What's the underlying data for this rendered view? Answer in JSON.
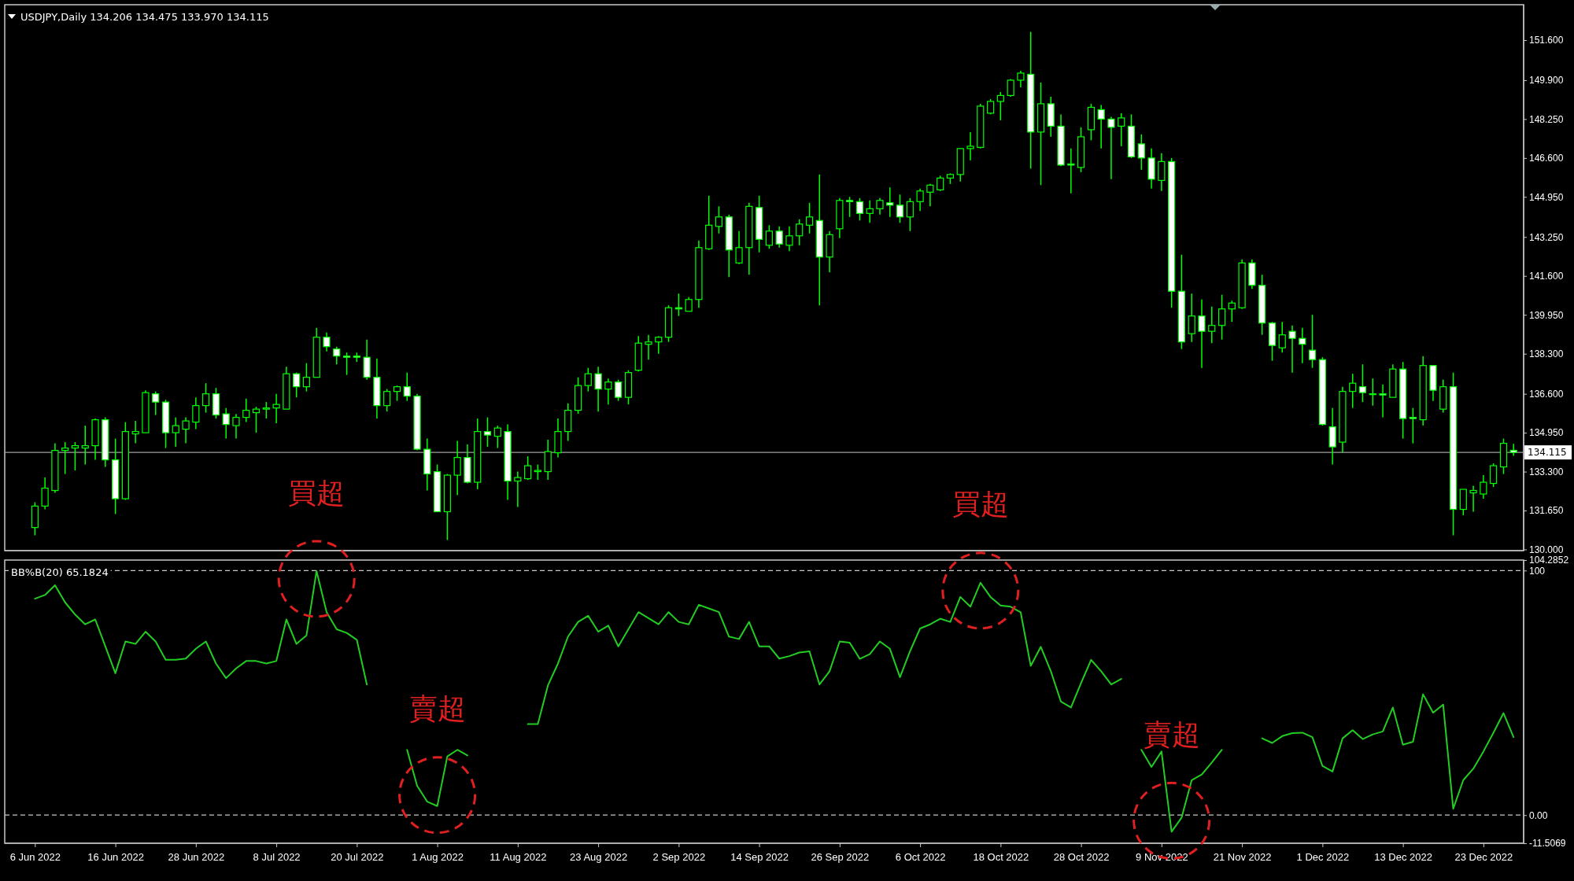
{
  "chart_data": [
    {
      "type": "candlestick",
      "title": "USDJPY,Daily  134.206 134.475 133.970 134.115",
      "color": "#00ff00",
      "tick_labels": "y",
      "categories": [
        null,
        null,
        null,
        null,
        null,
        null,
        null,
        null,
        null,
        null,
        null,
        null,
        null,
        null,
        null,
        null,
        null,
        null,
        null,
        null,
        null,
        null,
        null,
        null,
        null,
        null,
        null,
        null,
        null,
        null,
        null,
        null,
        null,
        null,
        null,
        null,
        null,
        null,
        null,
        null,
        null,
        null,
        null,
        null,
        null,
        null,
        null,
        null,
        null,
        null,
        null,
        null,
        null,
        null,
        null,
        null,
        null,
        null,
        null,
        null,
        null,
        null,
        null,
        null,
        null,
        null,
        null,
        null,
        null,
        null,
        null,
        null,
        null,
        null,
        null,
        null,
        null,
        null,
        null,
        null,
        null,
        null,
        null,
        null,
        null,
        null,
        null,
        null,
        null,
        null,
        null,
        null,
        null,
        null,
        null,
        null,
        null,
        null,
        null,
        null,
        null,
        null,
        null,
        null,
        null,
        null,
        null,
        null,
        null,
        null,
        null,
        null,
        null,
        null,
        null,
        null,
        null,
        null,
        null,
        null,
        null,
        null,
        null,
        null,
        null,
        null,
        null,
        null,
        null,
        null,
        null,
        null,
        null,
        null,
        null,
        null,
        null,
        null,
        null,
        null,
        null,
        null,
        null,
        null,
        null,
        null,
        null,
        null
      ],
      "ohlc": [
        [
          130.93,
          132.0,
          130.6,
          131.84
        ],
        [
          131.84,
          133.05,
          131.7,
          132.6
        ],
        [
          132.5,
          134.5,
          132.4,
          134.2
        ],
        [
          134.2,
          134.55,
          133.2,
          134.3
        ],
        [
          134.3,
          134.55,
          133.35,
          134.4
        ],
        [
          134.3,
          135.25,
          133.6,
          134.4
        ],
        [
          134.4,
          135.55,
          133.8,
          135.5
        ],
        [
          135.5,
          135.6,
          133.5,
          133.8
        ],
        [
          133.8,
          134.7,
          131.5,
          132.15
        ],
        [
          132.15,
          135.4,
          132.1,
          135.0
        ],
        [
          134.9,
          135.45,
          134.5,
          135.0
        ],
        [
          134.95,
          136.75,
          134.95,
          136.65
        ],
        [
          136.6,
          136.7,
          135.7,
          136.25
        ],
        [
          136.25,
          136.35,
          134.3,
          134.95
        ],
        [
          134.95,
          135.6,
          134.35,
          135.25
        ],
        [
          135.1,
          135.6,
          134.5,
          135.45
        ],
        [
          135.4,
          136.45,
          135.1,
          136.1
        ],
        [
          136.1,
          137.05,
          135.8,
          136.6
        ],
        [
          136.6,
          136.85,
          135.55,
          135.7
        ],
        [
          135.75,
          136.0,
          134.7,
          135.3
        ],
        [
          135.25,
          135.75,
          134.7,
          135.6
        ],
        [
          135.6,
          136.4,
          135.4,
          135.9
        ],
        [
          135.8,
          136.05,
          134.95,
          135.95
        ],
        [
          135.95,
          136.25,
          135.55,
          136.0
        ],
        [
          136.0,
          136.6,
          135.35,
          136.15
        ],
        [
          135.95,
          137.75,
          135.95,
          137.45
        ],
        [
          137.45,
          137.5,
          136.45,
          136.9
        ],
        [
          136.9,
          137.9,
          136.7,
          137.3
        ],
        [
          137.3,
          139.4,
          137.3,
          139.0
        ],
        [
          139.0,
          139.2,
          138.4,
          138.6
        ],
        [
          138.5,
          138.6,
          137.85,
          138.2
        ],
        [
          138.2,
          138.35,
          137.4,
          138.15
        ],
        [
          138.2,
          138.35,
          137.95,
          138.15
        ],
        [
          138.15,
          138.9,
          137.2,
          137.3
        ],
        [
          137.3,
          138.1,
          135.55,
          136.1
        ],
        [
          136.1,
          136.8,
          135.85,
          136.7
        ],
        [
          136.7,
          136.95,
          136.3,
          136.9
        ],
        [
          136.9,
          137.5,
          136.3,
          136.5
        ],
        [
          136.5,
          136.6,
          134.2,
          134.25
        ],
        [
          134.25,
          134.7,
          132.5,
          133.2
        ],
        [
          133.3,
          133.6,
          131.6,
          131.6
        ],
        [
          131.6,
          133.2,
          130.4,
          133.15
        ],
        [
          133.15,
          134.6,
          132.3,
          133.9
        ],
        [
          133.9,
          134.45,
          132.8,
          132.85
        ],
        [
          132.85,
          135.55,
          132.55,
          135.0
        ],
        [
          135.0,
          135.6,
          134.35,
          134.85
        ],
        [
          134.8,
          135.25,
          134.3,
          135.15
        ],
        [
          135.0,
          135.3,
          132.1,
          132.9
        ],
        [
          132.9,
          133.3,
          131.8,
          133.05
        ],
        [
          133.0,
          133.95,
          132.95,
          133.55
        ],
        [
          133.3,
          133.6,
          132.95,
          133.35
        ],
        [
          133.3,
          134.65,
          132.95,
          134.15
        ],
        [
          134.1,
          135.55,
          133.9,
          135.0
        ],
        [
          135.0,
          136.2,
          134.6,
          135.9
        ],
        [
          135.9,
          137.3,
          135.75,
          136.95
        ],
        [
          136.95,
          137.7,
          136.7,
          137.45
        ],
        [
          137.45,
          137.75,
          135.85,
          136.8
        ],
        [
          136.8,
          137.25,
          136.15,
          137.1
        ],
        [
          137.1,
          137.2,
          136.3,
          136.45
        ],
        [
          136.45,
          137.6,
          136.15,
          137.5
        ],
        [
          137.6,
          139.05,
          137.55,
          138.75
        ],
        [
          138.7,
          139.1,
          138.05,
          138.8
        ],
        [
          138.8,
          139.05,
          138.3,
          139.0
        ],
        [
          139.0,
          140.35,
          138.8,
          140.25
        ],
        [
          140.25,
          140.85,
          139.9,
          140.2
        ],
        [
          140.1,
          140.7,
          140.1,
          140.6
        ],
        [
          140.6,
          143.1,
          140.25,
          142.8
        ],
        [
          142.75,
          145.0,
          142.7,
          143.75
        ],
        [
          143.7,
          144.55,
          143.4,
          144.1
        ],
        [
          144.1,
          144.2,
          141.55,
          142.7
        ],
        [
          142.15,
          143.5,
          142.1,
          142.8
        ],
        [
          142.8,
          144.7,
          141.65,
          144.55
        ],
        [
          144.5,
          145.0,
          142.6,
          143.15
        ],
        [
          142.9,
          143.75,
          142.75,
          143.5
        ],
        [
          143.5,
          143.7,
          142.8,
          142.95
        ],
        [
          142.9,
          143.7,
          142.65,
          143.3
        ],
        [
          143.3,
          144.0,
          142.9,
          143.8
        ],
        [
          143.75,
          144.7,
          143.4,
          144.1
        ],
        [
          143.95,
          145.9,
          140.35,
          142.4
        ],
        [
          142.4,
          143.5,
          141.75,
          143.35
        ],
        [
          143.6,
          144.9,
          143.2,
          144.8
        ],
        [
          144.8,
          144.95,
          144.1,
          144.75
        ],
        [
          144.75,
          144.9,
          143.95,
          144.25
        ],
        [
          144.25,
          144.8,
          143.85,
          144.45
        ],
        [
          144.45,
          144.9,
          144.2,
          144.8
        ],
        [
          144.7,
          145.35,
          144.1,
          144.6
        ],
        [
          144.6,
          145.05,
          143.85,
          144.1
        ],
        [
          144.1,
          144.9,
          143.5,
          144.75
        ],
        [
          144.75,
          145.3,
          144.35,
          145.2
        ],
        [
          145.15,
          145.5,
          144.55,
          145.45
        ],
        [
          145.25,
          145.85,
          145.2,
          145.75
        ],
        [
          145.75,
          145.95,
          145.5,
          145.9
        ],
        [
          145.9,
          147.0,
          145.6,
          147.0
        ],
        [
          147.0,
          147.7,
          146.5,
          147.1
        ],
        [
          147.05,
          148.9,
          147.0,
          148.8
        ],
        [
          148.5,
          149.1,
          148.45,
          149.0
        ],
        [
          149.0,
          149.4,
          148.2,
          149.25
        ],
        [
          149.25,
          149.95,
          149.2,
          149.9
        ],
        [
          149.9,
          150.3,
          149.6,
          150.2
        ],
        [
          150.15,
          151.95,
          146.15,
          147.7
        ],
        [
          147.7,
          149.8,
          145.45,
          148.9
        ],
        [
          148.9,
          149.2,
          147.5,
          147.95
        ],
        [
          147.95,
          148.45,
          146.25,
          146.3
        ],
        [
          146.35,
          147.0,
          145.1,
          146.3
        ],
        [
          146.2,
          147.9,
          146.0,
          147.5
        ],
        [
          147.8,
          148.9,
          147.35,
          148.75
        ],
        [
          148.65,
          148.85,
          147.0,
          148.25
        ],
        [
          148.25,
          148.35,
          145.7,
          147.9
        ],
        [
          147.95,
          148.5,
          147.1,
          148.3
        ],
        [
          147.95,
          148.45,
          146.6,
          146.65
        ],
        [
          147.2,
          147.6,
          146.1,
          146.6
        ],
        [
          146.6,
          147.0,
          145.3,
          145.7
        ],
        [
          145.65,
          146.8,
          145.2,
          146.45
        ],
        [
          146.45,
          146.6,
          140.25,
          140.95
        ],
        [
          140.95,
          142.5,
          138.5,
          138.8
        ],
        [
          139.15,
          140.85,
          138.8,
          139.9
        ],
        [
          139.9,
          140.6,
          137.7,
          139.25
        ],
        [
          139.25,
          140.3,
          138.75,
          139.5
        ],
        [
          139.5,
          140.8,
          138.9,
          140.2
        ],
        [
          140.2,
          140.55,
          139.65,
          140.45
        ],
        [
          140.25,
          142.3,
          140.2,
          142.15
        ],
        [
          142.15,
          142.3,
          141.05,
          141.2
        ],
        [
          141.2,
          141.65,
          139.1,
          139.6
        ],
        [
          139.6,
          139.65,
          138.0,
          138.65
        ],
        [
          138.55,
          139.65,
          138.35,
          139.1
        ],
        [
          139.25,
          139.5,
          137.5,
          138.95
        ],
        [
          138.95,
          139.4,
          137.9,
          138.7
        ],
        [
          138.45,
          139.95,
          137.7,
          138.05
        ],
        [
          138.05,
          138.15,
          135.25,
          135.3
        ],
        [
          135.2,
          136.0,
          133.6,
          134.35
        ],
        [
          134.55,
          136.9,
          134.1,
          136.7
        ],
        [
          136.7,
          137.45,
          136.0,
          137.05
        ],
        [
          136.9,
          137.85,
          136.25,
          136.65
        ],
        [
          136.6,
          137.25,
          136.1,
          136.6
        ],
        [
          136.6,
          137.0,
          135.6,
          136.55
        ],
        [
          136.45,
          137.85,
          136.45,
          137.65
        ],
        [
          137.65,
          137.95,
          134.7,
          135.55
        ],
        [
          135.6,
          136.0,
          134.5,
          135.55
        ],
        [
          135.5,
          138.2,
          135.25,
          137.8
        ],
        [
          137.8,
          137.8,
          136.3,
          136.75
        ],
        [
          135.95,
          137.2,
          135.8,
          136.9
        ],
        [
          136.9,
          137.5,
          130.6,
          131.7
        ],
        [
          131.7,
          132.55,
          131.45,
          132.55
        ],
        [
          132.4,
          132.7,
          131.6,
          132.5
        ],
        [
          132.35,
          133.15,
          132.15,
          132.85
        ],
        [
          132.8,
          133.65,
          132.65,
          133.55
        ],
        [
          133.5,
          134.7,
          133.2,
          134.5
        ],
        [
          134.206,
          134.475,
          133.97,
          134.115
        ]
      ],
      "ylim": [
        129.95,
        153.1
      ],
      "yticks": [
        {
          "value": 130.0,
          "label": "130.000"
        },
        {
          "value": 131.65,
          "label": "131.650"
        },
        {
          "value": 133.3,
          "label": "133.300"
        },
        {
          "value": 134.95,
          "label": "134.950"
        },
        {
          "value": 136.6,
          "label": "136.600"
        },
        {
          "value": 138.3,
          "label": "138.300"
        },
        {
          "value": 139.95,
          "label": "139.950"
        },
        {
          "value": 141.6,
          "label": "141.600"
        },
        {
          "value": 143.25,
          "label": "143.250"
        },
        {
          "value": 144.95,
          "label": "144.950"
        },
        {
          "value": 146.6,
          "label": "146.600"
        },
        {
          "value": 148.25,
          "label": "148.250"
        },
        {
          "value": 149.9,
          "label": "149.900"
        },
        {
          "value": 151.6,
          "label": "151.600"
        }
      ],
      "ref_lines": [
        {
          "axis": "y",
          "value": 134.115,
          "label": "134.115",
          "color": "#a0a0a0",
          "line_style": "solid"
        }
      ]
    },
    {
      "type": "line",
      "title": "BB%B(20) 65.1824",
      "categories": [
        "6 Jun 2022",
        null,
        null,
        null,
        null,
        null,
        null,
        null,
        "16 Jun 2022",
        null,
        null,
        null,
        null,
        null,
        null,
        null,
        "28 Jun 2022",
        null,
        null,
        null,
        null,
        null,
        null,
        null,
        "8 Jul 2022",
        null,
        null,
        null,
        null,
        null,
        null,
        null,
        "20 Jul 2022",
        null,
        null,
        null,
        null,
        null,
        null,
        null,
        "1 Aug 2022",
        null,
        null,
        null,
        null,
        null,
        null,
        null,
        "11 Aug 2022",
        null,
        null,
        null,
        null,
        null,
        null,
        null,
        "23 Aug 2022",
        null,
        null,
        null,
        null,
        null,
        null,
        null,
        "2 Sep 2022",
        null,
        null,
        null,
        null,
        null,
        null,
        null,
        "14 Sep 2022",
        null,
        null,
        null,
        null,
        null,
        null,
        null,
        "26 Sep 2022",
        null,
        null,
        null,
        null,
        null,
        null,
        null,
        "6 Oct 2022",
        null,
        null,
        null,
        null,
        null,
        null,
        null,
        "18 Oct 2022",
        null,
        null,
        null,
        null,
        null,
        null,
        null,
        "28 Oct 2022",
        null,
        null,
        null,
        null,
        null,
        null,
        null,
        "9 Nov 2022",
        null,
        null,
        null,
        null,
        null,
        null,
        null,
        "21 Nov 2022",
        null,
        null,
        null,
        null,
        null,
        null,
        null,
        "1 Dec 2022",
        null,
        null,
        null,
        null,
        null,
        null,
        null,
        "13 Dec 2022",
        null,
        null,
        null,
        null,
        null,
        null,
        null,
        "23 Dec 2022",
        null,
        null,
        null
      ],
      "series": [
        {
          "color": "#22cc22",
          "values": [
            88.5,
            90,
            94,
            87,
            82,
            78,
            80,
            69,
            58,
            71,
            70,
            75,
            71,
            63.5,
            63.5,
            64,
            68,
            71,
            62,
            56,
            60,
            63,
            63,
            62,
            63,
            80,
            70,
            73.5,
            99.8,
            83,
            76,
            74.5,
            71.7,
            53.4,
            null,
            null,
            null,
            26.7,
            12,
            5.5,
            3.7,
            24,
            26.7,
            24.4,
            null,
            null,
            null,
            null,
            null,
            37.2,
            37.2,
            53,
            62,
            73,
            79,
            81.5,
            75,
            77.5,
            69,
            76,
            83,
            80.5,
            78,
            83,
            79,
            78,
            86,
            84.5,
            83,
            73,
            72,
            79,
            69,
            69,
            64,
            65,
            66.5,
            67,
            53.4,
            58.8,
            71,
            70.5,
            63.9,
            65.8,
            71,
            68,
            56.4,
            67,
            76.3,
            78,
            80.3,
            79,
            89.2,
            85.2,
            95,
            89.2,
            85.7,
            85.2,
            82.9,
            61,
            68.8,
            58.8,
            46.4,
            44,
            54,
            63.5,
            58.8,
            53.4,
            55.7,
            null,
            26.7,
            19.7,
            26,
            -6.8,
            -1,
            14.3,
            16.6,
            21.5,
            26.7,
            null,
            null,
            null,
            31.4,
            29.5,
            32.3,
            33.5,
            33.7,
            31.9,
            20.1,
            17.8,
            31.4,
            34.7,
            31.1,
            33,
            34.2,
            44,
            28.8,
            30,
            49.4,
            41.9,
            45.2,
            2.6,
            14.3,
            19,
            26,
            33.7,
            41.7,
            31.9
          ]
        }
      ],
      "ylim": [
        -11.5069,
        104.2852
      ],
      "yticks": [
        {
          "value": -11.5069,
          "label": "-11.5069"
        },
        {
          "value": 0,
          "label": "0.00"
        },
        100,
        {
          "value": 104.2852,
          "label": "104.2852"
        }
      ],
      "ref_lines": [
        {
          "axis": "y",
          "value": 100,
          "color": "#c8c8c8",
          "line_style": "dashed"
        },
        {
          "axis": "y",
          "value": 0,
          "color": "#c8c8c8",
          "line_style": "dashed"
        }
      ],
      "annotations": [
        "買超",
        "賣超",
        "買超",
        "賣超"
      ]
    }
  ]
}
